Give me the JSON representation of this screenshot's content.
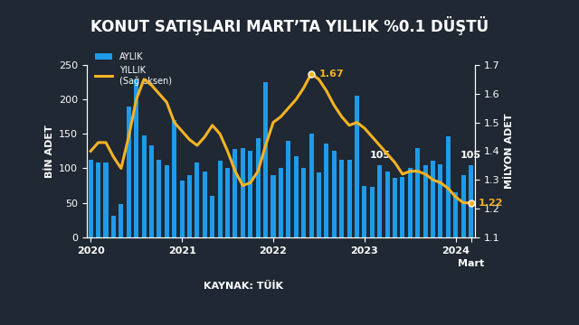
{
  "chart_data": {
    "type": "bar",
    "title": "KONUT SATIŞLARI MART’TA YILLIK %0.1 DÜŞTÜ",
    "source": "KAYNAK: TÜİK",
    "y_label": "BİN ADET",
    "y2_label": "MİLYON ADET",
    "categories": [
      "2020",
      null,
      null,
      null,
      null,
      null,
      null,
      null,
      null,
      null,
      null,
      null,
      "2021",
      null,
      null,
      null,
      null,
      null,
      null,
      null,
      null,
      null,
      null,
      null,
      "2022",
      null,
      null,
      null,
      null,
      null,
      null,
      null,
      null,
      null,
      null,
      null,
      "2023",
      null,
      null,
      null,
      null,
      null,
      null,
      null,
      null,
      null,
      null,
      null,
      "2024",
      null,
      "Mart"
    ],
    "series": [
      {
        "name": "AYLIK",
        "type": "bar",
        "color": "#1e9be9",
        "values": [
          113,
          109,
          109,
          31,
          48,
          190,
          229,
          148,
          134,
          113,
          105,
          170,
          82,
          90,
          109,
          95,
          60,
          111,
          101,
          128,
          130,
          125,
          144,
          225,
          90,
          101,
          140,
          118,
          101,
          151,
          94,
          136,
          126,
          112,
          112,
          205,
          74,
          73,
          105,
          96,
          86,
          88,
          101,
          130,
          105,
          111,
          106,
          146,
          65,
          90,
          105
        ],
        "value_labels": [
          null,
          null,
          null,
          null,
          null,
          null,
          null,
          null,
          null,
          null,
          null,
          null,
          null,
          null,
          null,
          null,
          null,
          null,
          null,
          null,
          null,
          null,
          null,
          null,
          null,
          null,
          null,
          null,
          null,
          null,
          null,
          null,
          null,
          null,
          null,
          null,
          null,
          null,
          "105",
          null,
          null,
          null,
          null,
          null,
          null,
          null,
          null,
          null,
          null,
          null,
          "105"
        ]
      },
      {
        "name": "YILLIK\n(Sağ eksen)",
        "type": "line",
        "axis": "y2",
        "color": "#f5b323",
        "values": [
          1.4,
          1.43,
          1.43,
          1.38,
          1.34,
          1.45,
          1.58,
          1.65,
          1.63,
          1.6,
          1.57,
          1.5,
          1.47,
          1.44,
          1.42,
          1.45,
          1.49,
          1.46,
          1.4,
          1.33,
          1.28,
          1.29,
          1.33,
          1.42,
          1.5,
          1.52,
          1.55,
          1.58,
          1.62,
          1.67,
          1.65,
          1.61,
          1.56,
          1.52,
          1.49,
          1.5,
          1.48,
          1.45,
          1.42,
          1.39,
          1.36,
          1.32,
          1.33,
          1.33,
          1.32,
          1.3,
          1.29,
          1.27,
          1.24,
          1.22,
          1.22
        ],
        "value_labels": [
          null,
          null,
          null,
          null,
          null,
          null,
          null,
          null,
          null,
          null,
          null,
          null,
          null,
          null,
          null,
          null,
          null,
          null,
          null,
          null,
          null,
          null,
          null,
          null,
          null,
          null,
          null,
          null,
          null,
          "1.67",
          null,
          null,
          null,
          null,
          null,
          null,
          null,
          null,
          null,
          null,
          null,
          null,
          null,
          null,
          null,
          null,
          null,
          null,
          null,
          null,
          "1.22"
        ]
      }
    ],
    "ylim": [
      0,
      250
    ],
    "yticks": [
      0,
      50,
      100,
      150,
      200,
      250
    ],
    "y2lim": [
      1.1,
      1.7
    ],
    "y2ticks": [
      1.1,
      1.2,
      1.3,
      1.4,
      1.5,
      1.6,
      1.7
    ],
    "legend": "upper left",
    "grid": false
  }
}
